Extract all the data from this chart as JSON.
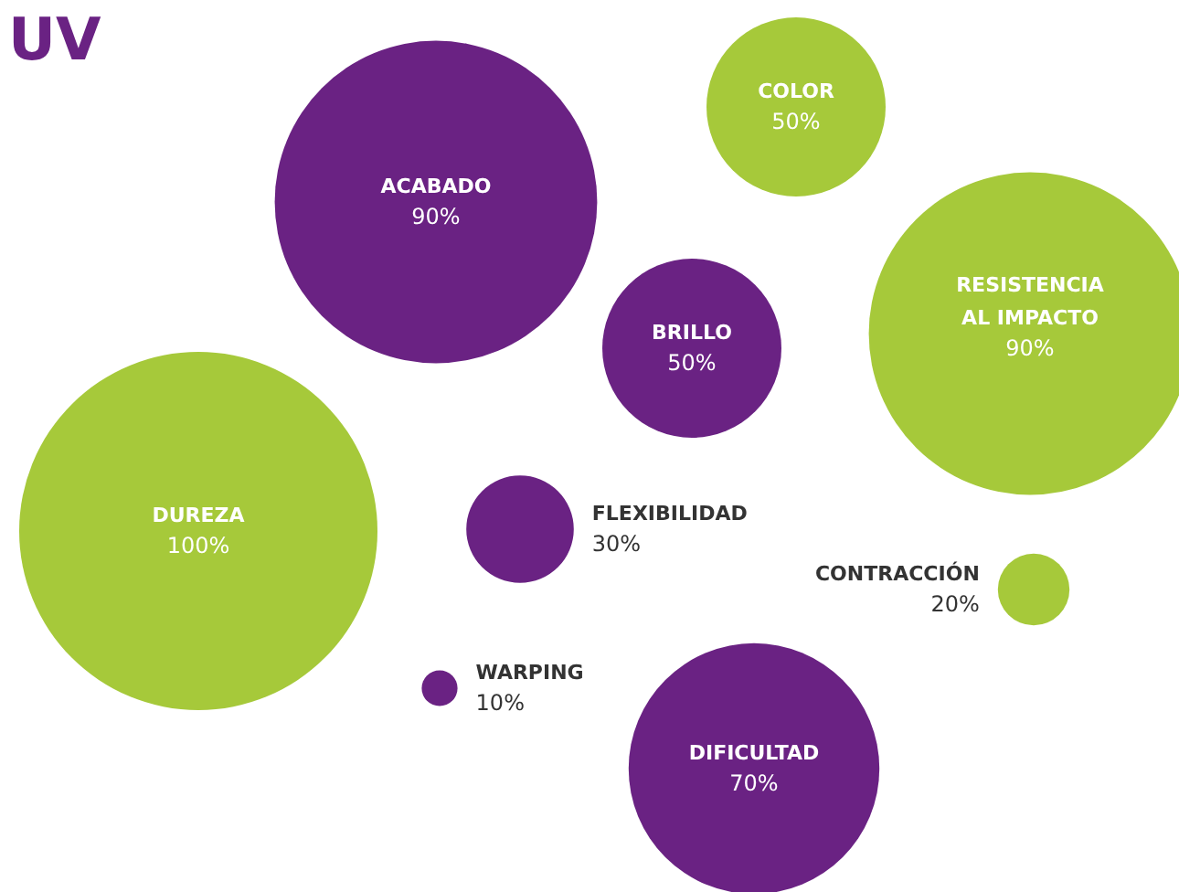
{
  "chart_data": {
    "type": "other",
    "title": "UV",
    "categories": [
      "ACABADO",
      "COLOR",
      "BRILLO",
      "RESISTENCIA\nAL IMPACTO",
      "DUREZA",
      "FLEXIBILIDAD",
      "CONTRACCIÓN",
      "WARPING",
      "DIFICULTAD"
    ],
    "values": [
      90,
      50,
      50,
      90,
      100,
      30,
      20,
      10,
      70
    ],
    "value_labels": [
      "90%",
      "50%",
      "50%",
      "90%",
      "100%",
      "30%",
      "20%",
      "10%",
      "70%"
    ],
    "colors": [
      "#6a2283",
      "#a6c93a",
      "#6a2283",
      "#a6c93a",
      "#a6c93a",
      "#6a2283",
      "#a6c93a",
      "#6a2283",
      "#6a2283"
    ]
  }
}
